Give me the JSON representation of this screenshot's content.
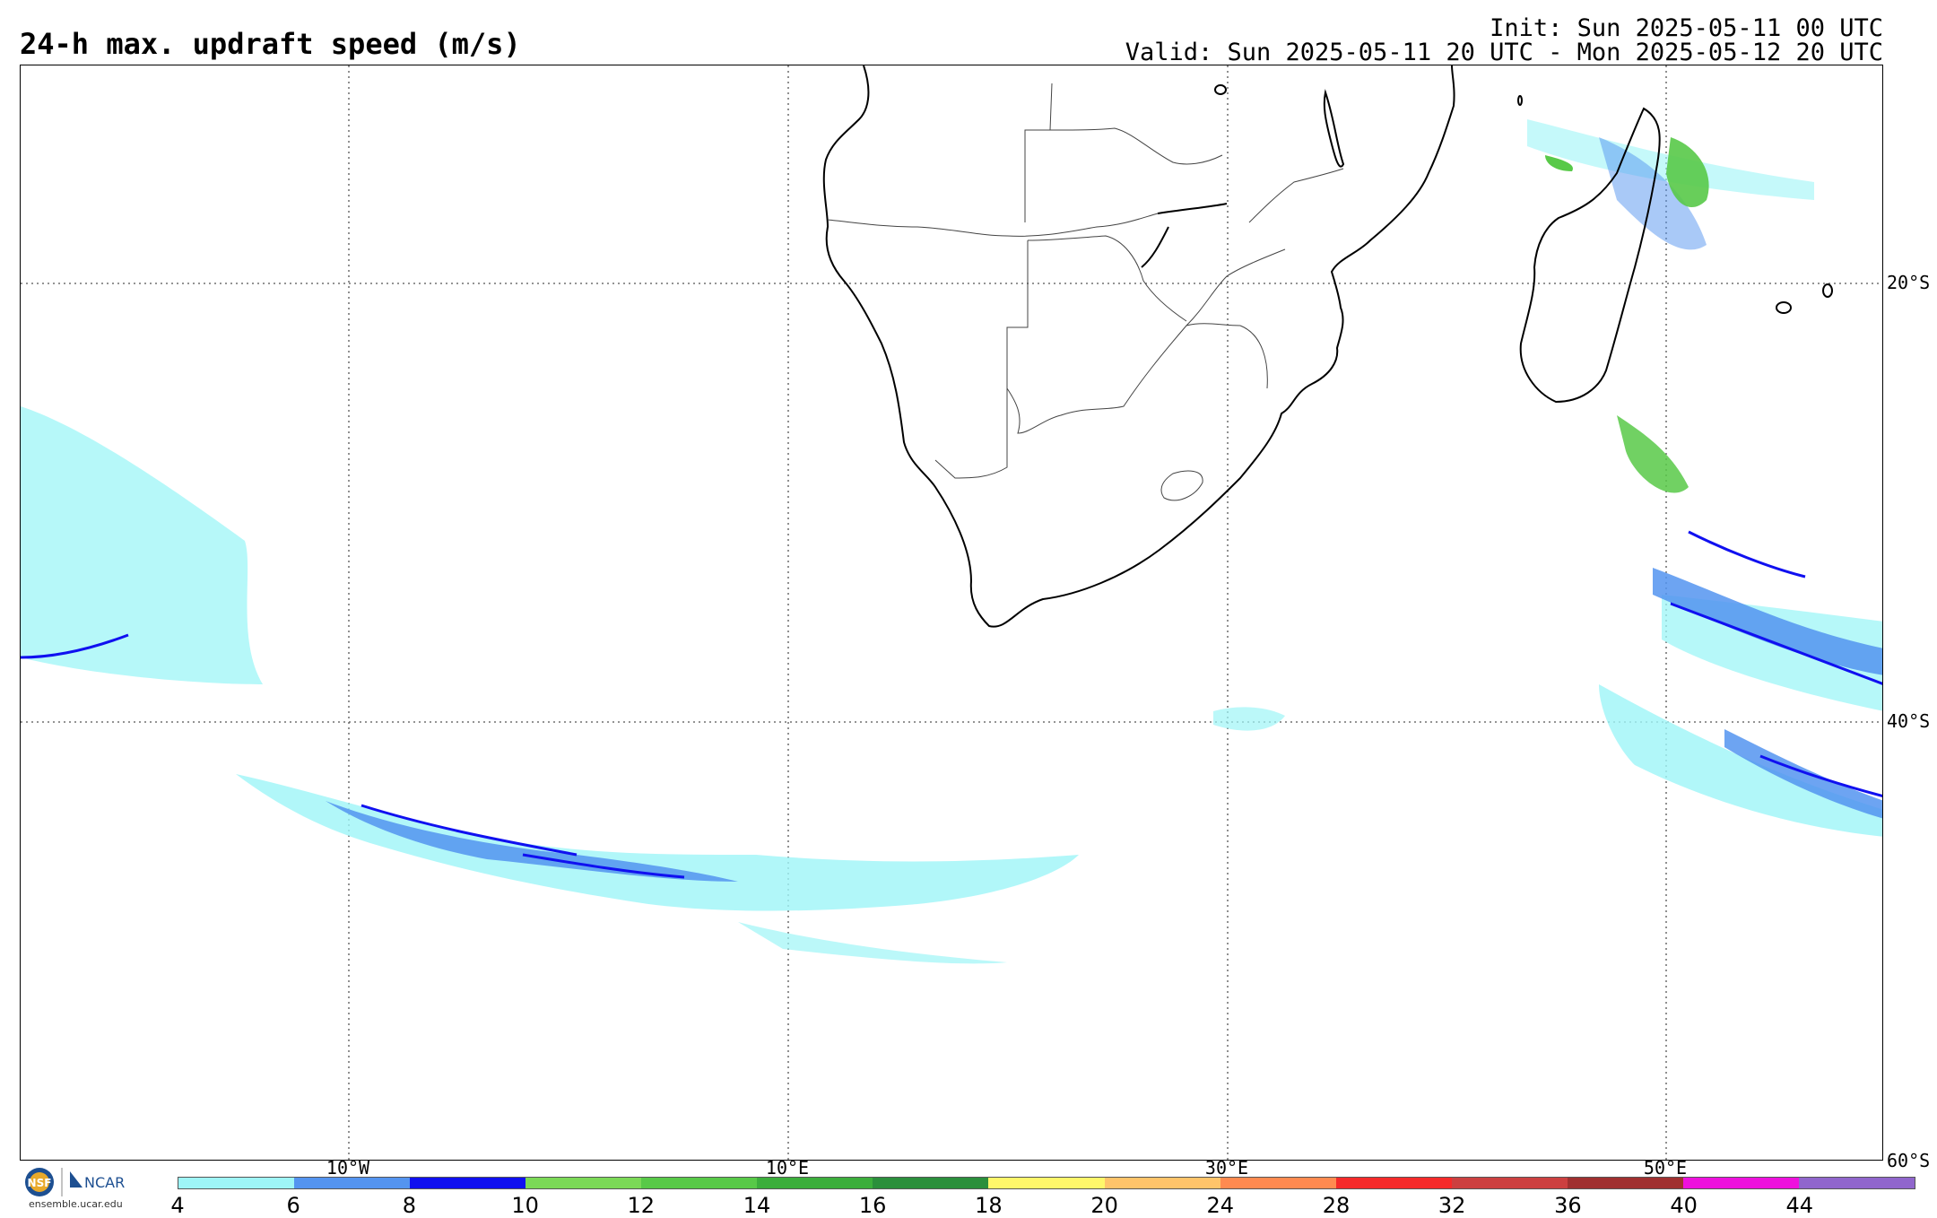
{
  "header": {
    "title": "24-h max. updraft speed (m/s)",
    "init": "Init: Sun 2025-05-11 00 UTC",
    "valid": "Valid: Sun 2025-05-11 20 UTC - Mon 2025-05-12 20 UTC"
  },
  "graticule": {
    "lon_labels": [
      "10°W",
      "10°E",
      "30°E",
      "50°E"
    ],
    "lat_labels": [
      "20°S",
      "40°S",
      "60°S"
    ]
  },
  "logo": {
    "org1": "NSF",
    "org2": "NCAR",
    "url": "ensemble.ucar.edu"
  },
  "colorbar": {
    "labels": [
      "4",
      "6",
      "8",
      "10",
      "12",
      "14",
      "16",
      "18",
      "20",
      "24",
      "28",
      "32",
      "36",
      "40",
      "44"
    ],
    "colors": [
      "#9ef5f7",
      "#5494f0",
      "#1010f0",
      "#7bd957",
      "#58c948",
      "#3cae3c",
      "#2b8f3c",
      "#fff76a",
      "#ffc46a",
      "#ff8a50",
      "#f52a2a",
      "#cc4040",
      "#a03030",
      "#ee11dd",
      "#9066cc"
    ]
  }
}
